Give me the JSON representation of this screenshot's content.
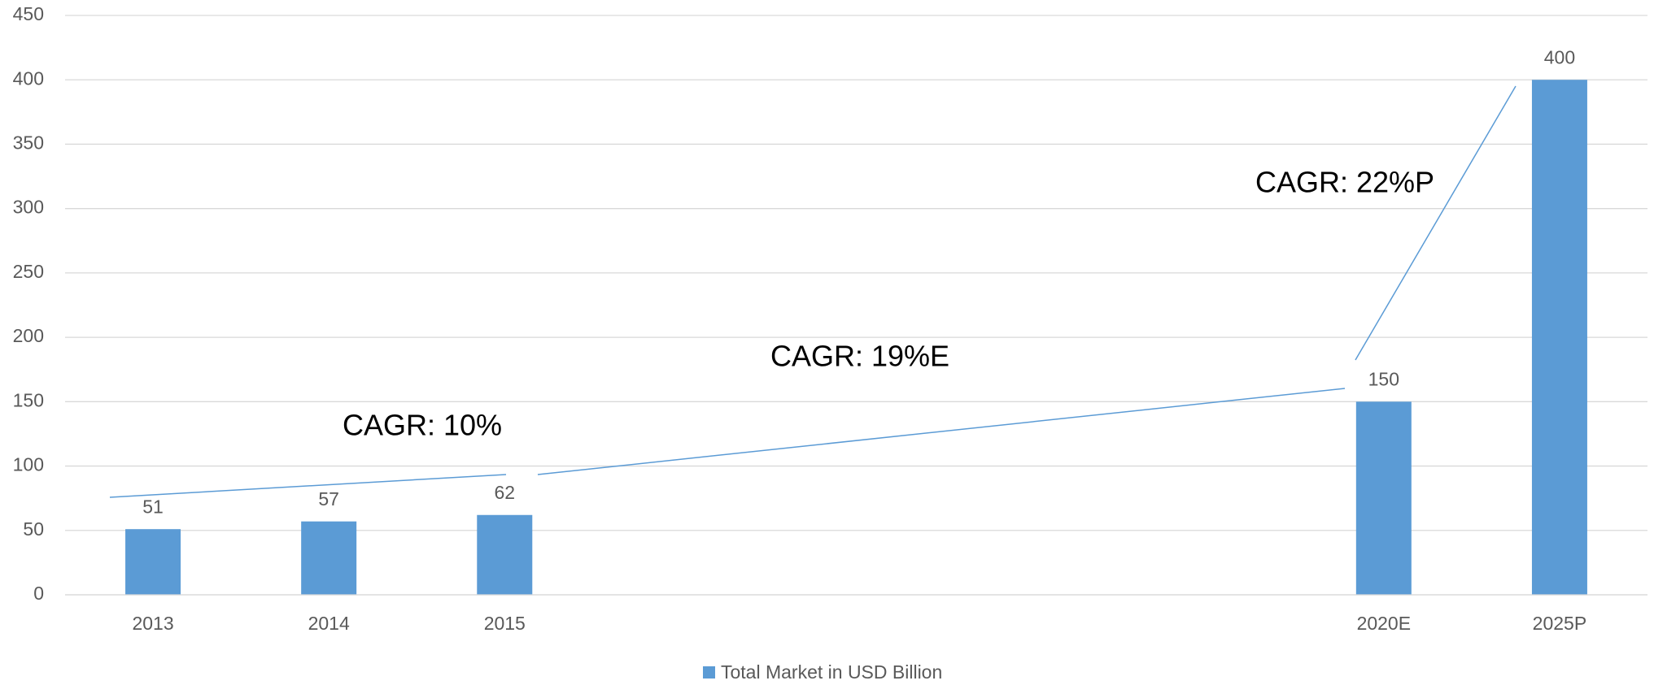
{
  "chart_data": {
    "type": "bar",
    "categories": [
      "2013",
      "2014",
      "2015",
      null,
      null,
      null,
      null,
      "2020E",
      "2025P"
    ],
    "series": [
      {
        "name": "Total Market in USD Billion",
        "color": "#5b9bd5",
        "values": [
          51,
          57,
          62,
          null,
          null,
          null,
          null,
          150,
          400
        ]
      }
    ],
    "ylim": [
      0,
      450
    ],
    "yticks": [
      0,
      50,
      100,
      150,
      200,
      250,
      300,
      350,
      400,
      450
    ],
    "grid": true,
    "legend": "bottom",
    "annotations": [
      "CAGR: 10%",
      "CAGR: 19%E",
      "CAGR: 22%P"
    ]
  }
}
